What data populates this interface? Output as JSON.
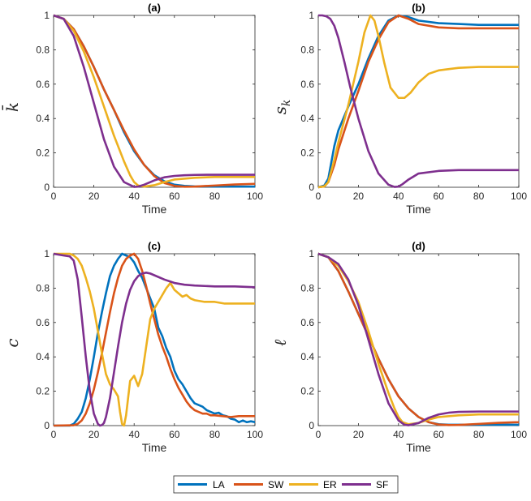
{
  "legend": [
    {
      "name": "LA",
      "color": "#0072BD"
    },
    {
      "name": "SW",
      "color": "#D95319"
    },
    {
      "name": "ER",
      "color": "#EDB120"
    },
    {
      "name": "SF",
      "color": "#7E2F8E"
    }
  ],
  "chart_data": [
    {
      "type": "line",
      "title": "(a)",
      "xlabel": "Time",
      "ylabel": "k̄",
      "xlim": [
        0,
        100
      ],
      "ylim": [
        0,
        1
      ],
      "xticks": [
        "0",
        "20",
        "40",
        "60",
        "80",
        "100"
      ],
      "yticks": [
        "0",
        "0.2",
        "0.4",
        "0.6",
        "0.8",
        "1"
      ],
      "series": [
        {
          "name": "LA",
          "x": [
            0,
            5,
            10,
            15,
            20,
            25,
            30,
            35,
            40,
            45,
            50,
            55,
            60,
            65,
            70,
            80,
            90,
            100
          ],
          "y": [
            1,
            0.98,
            0.92,
            0.82,
            0.7,
            0.57,
            0.45,
            0.32,
            0.21,
            0.13,
            0.07,
            0.035,
            0.015,
            0.008,
            0.005,
            0.004,
            0.004,
            0.004
          ]
        },
        {
          "name": "SW",
          "x": [
            0,
            5,
            10,
            15,
            20,
            25,
            30,
            35,
            40,
            45,
            50,
            55,
            60,
            65,
            70,
            80,
            90,
            100
          ],
          "y": [
            1,
            0.98,
            0.92,
            0.82,
            0.7,
            0.57,
            0.45,
            0.33,
            0.22,
            0.13,
            0.065,
            0.025,
            0.008,
            0.003,
            0.004,
            0.01,
            0.016,
            0.02
          ]
        },
        {
          "name": "ER",
          "x": [
            0,
            5,
            10,
            15,
            20,
            25,
            30,
            35,
            38,
            40,
            42,
            45,
            50,
            55,
            60,
            70,
            80,
            90,
            100
          ],
          "y": [
            1,
            0.98,
            0.91,
            0.79,
            0.64,
            0.47,
            0.3,
            0.15,
            0.07,
            0.03,
            0.01,
            0.004,
            0.012,
            0.03,
            0.045,
            0.055,
            0.06,
            0.06,
            0.06
          ]
        },
        {
          "name": "SF",
          "x": [
            0,
            5,
            10,
            15,
            20,
            25,
            30,
            35,
            40,
            42,
            45,
            50,
            55,
            60,
            65,
            70,
            80,
            90,
            100
          ],
          "y": [
            1,
            0.98,
            0.88,
            0.7,
            0.49,
            0.28,
            0.12,
            0.03,
            0.002,
            0.004,
            0.015,
            0.04,
            0.058,
            0.066,
            0.07,
            0.072,
            0.073,
            0.073,
            0.073
          ]
        }
      ]
    },
    {
      "type": "line",
      "title": "(b)",
      "xlabel": "Time",
      "ylabel": "s",
      "ylabel_sub": "k",
      "xlim": [
        0,
        100
      ],
      "ylim": [
        0,
        1
      ],
      "xticks": [
        "0",
        "20",
        "40",
        "60",
        "80",
        "100"
      ],
      "yticks": [
        "0",
        "0.2",
        "0.4",
        "0.6",
        "0.8",
        "1"
      ],
      "series": [
        {
          "name": "LA",
          "x": [
            0,
            3,
            5,
            8,
            10,
            15,
            20,
            25,
            30,
            35,
            40,
            45,
            50,
            60,
            70,
            80,
            90,
            100
          ],
          "y": [
            0,
            0.01,
            0.05,
            0.24,
            0.33,
            0.47,
            0.6,
            0.75,
            0.88,
            0.97,
            1.0,
            0.99,
            0.97,
            0.955,
            0.95,
            0.945,
            0.945,
            0.945
          ]
        },
        {
          "name": "SW",
          "x": [
            0,
            3,
            5,
            8,
            10,
            15,
            20,
            25,
            30,
            35,
            40,
            45,
            50,
            60,
            70,
            80,
            90,
            100
          ],
          "y": [
            0,
            0.005,
            0.03,
            0.13,
            0.22,
            0.4,
            0.56,
            0.73,
            0.86,
            0.96,
            1.0,
            0.98,
            0.95,
            0.93,
            0.925,
            0.925,
            0.925,
            0.925
          ]
        },
        {
          "name": "ER",
          "x": [
            0,
            3,
            5,
            8,
            10,
            15,
            20,
            23,
            26,
            28,
            30,
            33,
            36,
            40,
            43,
            46,
            50,
            55,
            60,
            70,
            80,
            90,
            100
          ],
          "y": [
            0,
            0.005,
            0.03,
            0.16,
            0.26,
            0.48,
            0.73,
            0.9,
            1.0,
            0.97,
            0.88,
            0.72,
            0.58,
            0.52,
            0.52,
            0.55,
            0.61,
            0.66,
            0.68,
            0.695,
            0.7,
            0.7,
            0.7
          ]
        },
        {
          "name": "SF",
          "x": [
            0,
            2,
            4,
            6,
            8,
            10,
            13,
            16,
            20,
            25,
            30,
            35,
            38,
            40,
            42,
            45,
            50,
            60,
            70,
            80,
            90,
            100
          ],
          "y": [
            1,
            1,
            0.995,
            0.98,
            0.94,
            0.87,
            0.73,
            0.58,
            0.4,
            0.21,
            0.08,
            0.015,
            0.002,
            0.004,
            0.018,
            0.045,
            0.08,
            0.095,
            0.1,
            0.1,
            0.1,
            0.1
          ]
        }
      ]
    },
    {
      "type": "line",
      "title": "(c)",
      "xlabel": "Time",
      "ylabel": "c",
      "xlim": [
        0,
        100
      ],
      "ylim": [
        0,
        1
      ],
      "xticks": [
        "0",
        "20",
        "40",
        "60",
        "80",
        "100"
      ],
      "yticks": [
        "0",
        "0.2",
        "0.4",
        "0.6",
        "0.8",
        "1"
      ],
      "series": [
        {
          "name": "LA",
          "x": [
            0,
            8,
            10,
            12,
            14,
            16,
            18,
            20,
            22,
            24,
            26,
            28,
            30,
            32,
            34,
            36,
            38,
            40,
            42,
            44,
            46,
            48,
            50,
            52,
            54,
            56,
            58,
            60,
            62,
            64,
            66,
            68,
            70,
            72,
            74,
            76,
            78,
            80,
            82,
            84,
            86,
            88,
            90,
            92,
            94,
            96,
            98,
            100
          ],
          "y": [
            0,
            0,
            0.01,
            0.04,
            0.08,
            0.16,
            0.27,
            0.4,
            0.54,
            0.66,
            0.77,
            0.87,
            0.93,
            0.97,
            1.0,
            0.99,
            0.98,
            0.95,
            0.9,
            0.86,
            0.8,
            0.74,
            0.68,
            0.57,
            0.52,
            0.45,
            0.4,
            0.32,
            0.27,
            0.24,
            0.2,
            0.16,
            0.13,
            0.12,
            0.11,
            0.09,
            0.08,
            0.07,
            0.075,
            0.06,
            0.055,
            0.04,
            0.035,
            0.02,
            0.03,
            0.02,
            0.025,
            0.02
          ]
        },
        {
          "name": "SW",
          "x": [
            0,
            10,
            12,
            14,
            16,
            18,
            20,
            22,
            24,
            26,
            28,
            30,
            32,
            34,
            36,
            38,
            40,
            42,
            44,
            46,
            48,
            50,
            52,
            54,
            56,
            58,
            60,
            62,
            64,
            66,
            68,
            70,
            72,
            74,
            76,
            78,
            80,
            84,
            88,
            92,
            96,
            100
          ],
          "y": [
            0,
            0.002,
            0.01,
            0.03,
            0.07,
            0.13,
            0.21,
            0.31,
            0.42,
            0.54,
            0.66,
            0.77,
            0.86,
            0.93,
            0.97,
            0.99,
            1.0,
            0.97,
            0.9,
            0.81,
            0.71,
            0.62,
            0.53,
            0.46,
            0.4,
            0.33,
            0.27,
            0.22,
            0.18,
            0.14,
            0.11,
            0.09,
            0.08,
            0.07,
            0.07,
            0.06,
            0.06,
            0.055,
            0.05,
            0.055,
            0.055,
            0.055
          ]
        },
        {
          "name": "ER",
          "x": [
            0,
            5,
            8,
            10,
            12,
            14,
            16,
            18,
            20,
            22,
            24,
            26,
            28,
            30,
            32,
            33,
            34,
            35,
            36,
            38,
            40,
            42,
            44,
            46,
            48,
            50,
            52,
            54,
            56,
            58,
            60,
            62,
            64,
            66,
            68,
            70,
            75,
            80,
            85,
            90,
            95,
            100
          ],
          "y": [
            1,
            1,
            1,
            0.99,
            0.97,
            0.93,
            0.86,
            0.78,
            0.68,
            0.55,
            0.42,
            0.3,
            0.24,
            0.21,
            0.17,
            0.08,
            0.01,
            0.0,
            0.06,
            0.26,
            0.29,
            0.23,
            0.3,
            0.46,
            0.62,
            0.68,
            0.72,
            0.76,
            0.8,
            0.83,
            0.79,
            0.77,
            0.75,
            0.76,
            0.74,
            0.73,
            0.72,
            0.72,
            0.71,
            0.71,
            0.71,
            0.71
          ]
        },
        {
          "name": "SF",
          "x": [
            0,
            5,
            8,
            10,
            12,
            14,
            16,
            18,
            20,
            22,
            23,
            24,
            25,
            26,
            28,
            30,
            32,
            34,
            36,
            38,
            40,
            42,
            44,
            46,
            48,
            50,
            55,
            60,
            65,
            70,
            80,
            90,
            100
          ],
          "y": [
            1,
            0.99,
            0.985,
            0.96,
            0.85,
            0.63,
            0.4,
            0.2,
            0.07,
            0.01,
            0.0,
            0.003,
            0.015,
            0.05,
            0.16,
            0.31,
            0.46,
            0.6,
            0.71,
            0.79,
            0.84,
            0.87,
            0.885,
            0.89,
            0.885,
            0.875,
            0.85,
            0.83,
            0.82,
            0.815,
            0.81,
            0.81,
            0.805
          ]
        }
      ]
    },
    {
      "type": "line",
      "title": "(d)",
      "xlabel": "Time",
      "ylabel": "ℓ",
      "xlim": [
        0,
        100
      ],
      "ylim": [
        0,
        1
      ],
      "xticks": [
        "0",
        "20",
        "40",
        "60",
        "80",
        "100"
      ],
      "yticks": [
        "0",
        "0.2",
        "0.4",
        "0.6",
        "0.8",
        "1"
      ],
      "series": [
        {
          "name": "LA",
          "x": [
            0,
            5,
            10,
            15,
            20,
            25,
            30,
            35,
            40,
            45,
            50,
            55,
            60,
            65,
            70,
            80,
            90,
            100
          ],
          "y": [
            1,
            0.98,
            0.9,
            0.78,
            0.65,
            0.52,
            0.39,
            0.27,
            0.17,
            0.1,
            0.05,
            0.02,
            0.008,
            0.005,
            0.005,
            0.005,
            0.005,
            0.005
          ]
        },
        {
          "name": "SW",
          "x": [
            0,
            5,
            10,
            15,
            20,
            25,
            30,
            35,
            40,
            45,
            50,
            55,
            60,
            65,
            70,
            80,
            90,
            100
          ],
          "y": [
            1,
            0.98,
            0.9,
            0.78,
            0.65,
            0.52,
            0.39,
            0.27,
            0.17,
            0.1,
            0.05,
            0.02,
            0.006,
            0.003,
            0.004,
            0.01,
            0.016,
            0.02
          ]
        },
        {
          "name": "ER",
          "x": [
            0,
            5,
            10,
            15,
            20,
            25,
            30,
            35,
            38,
            40,
            42,
            45,
            50,
            55,
            60,
            70,
            80,
            90,
            100
          ],
          "y": [
            1,
            0.98,
            0.93,
            0.84,
            0.72,
            0.55,
            0.36,
            0.19,
            0.1,
            0.05,
            0.02,
            0.008,
            0.015,
            0.035,
            0.05,
            0.06,
            0.065,
            0.065,
            0.065
          ]
        },
        {
          "name": "SF",
          "x": [
            0,
            5,
            10,
            15,
            20,
            25,
            30,
            35,
            40,
            43,
            45,
            50,
            55,
            60,
            65,
            70,
            80,
            90,
            100
          ],
          "y": [
            1,
            0.98,
            0.94,
            0.85,
            0.7,
            0.5,
            0.3,
            0.13,
            0.03,
            0.005,
            0.002,
            0.015,
            0.045,
            0.065,
            0.075,
            0.08,
            0.082,
            0.082,
            0.082
          ]
        }
      ]
    }
  ]
}
